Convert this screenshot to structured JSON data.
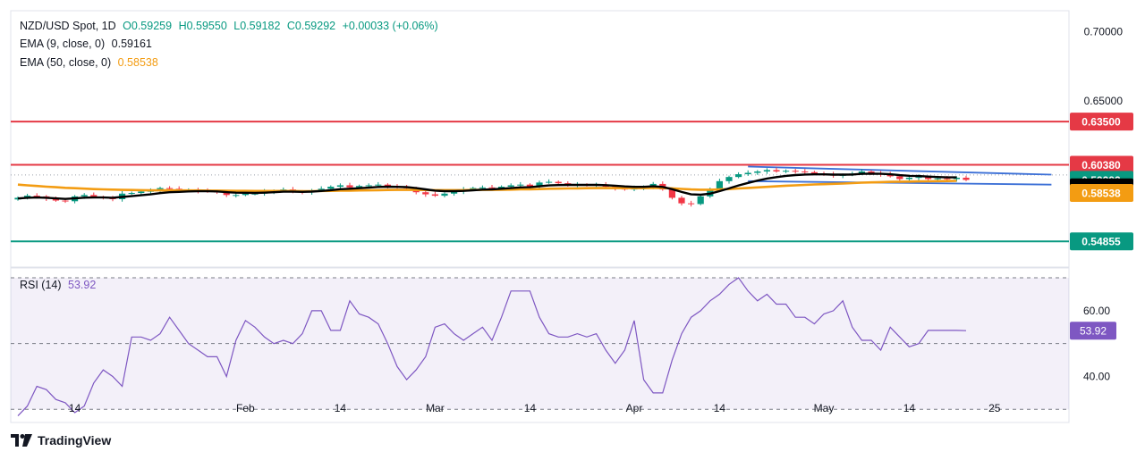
{
  "header": {
    "symbol": "NZD/USD Spot, 1D",
    "open": "O0.59259",
    "high": "H0.59550",
    "low": "L0.59182",
    "close": "C0.59292",
    "change": "+0.00033 (+0.06%)",
    "ema9_label": "EMA (9, close, 0)",
    "ema9_value": "0.59161",
    "ema50_label": "EMA (50, close, 0)",
    "ema50_value": "0.58538",
    "rsi_label": "RSI (14)",
    "rsi_value": "53.92"
  },
  "brand": "TradingView",
  "colors": {
    "up": "#089981",
    "down": "#f23645",
    "ema9": "#000000",
    "ema50": "#f39c12",
    "rsi": "#7e57c2",
    "resistance": "#e53945",
    "support": "#089981",
    "channel": "#3b6fd6"
  },
  "chart_data": {
    "type": "candlestick",
    "y_axis": {
      "ticks": [
        "0.70000",
        "0.65000"
      ],
      "tick_values": [
        0.7,
        0.65
      ],
      "range": [
        0.53,
        0.715
      ]
    },
    "x_axis_labels": [
      {
        "label": "14",
        "day": 6
      },
      {
        "label": "Feb",
        "day": 24
      },
      {
        "label": "14",
        "day": 34
      },
      {
        "label": "Mar",
        "day": 44
      },
      {
        "label": "14",
        "day": 54
      },
      {
        "label": "Apr",
        "day": 65
      },
      {
        "label": "14",
        "day": 74
      },
      {
        "label": "May",
        "day": 85
      },
      {
        "label": "14",
        "day": 94
      },
      {
        "label": "25",
        "day": 103
      }
    ],
    "price_levels": [
      {
        "name": "resistance-2",
        "value": 0.635,
        "label": "0.63500",
        "color": "#e53945"
      },
      {
        "name": "resistance-1",
        "value": 0.6038,
        "label": "0.60380",
        "color": "#e53945"
      },
      {
        "name": "support",
        "value": 0.54855,
        "label": "0.54855",
        "color": "#089981"
      }
    ],
    "price_tags": [
      {
        "label": "0.59292",
        "value": 0.59292,
        "color": "#089981"
      },
      {
        "label": "0.59161",
        "value": 0.5875,
        "color": "#000000"
      },
      {
        "label": "0.58538",
        "value": 0.5835,
        "color": "#f39c12"
      }
    ],
    "channel": {
      "upper": [
        [
          77,
          0.6025
        ],
        [
          109,
          0.5967
        ]
      ],
      "lower": [
        [
          77,
          0.592
        ],
        [
          109,
          0.5895
        ]
      ]
    },
    "closes": [
      0.58,
      0.5815,
      0.581,
      0.5795,
      0.578,
      0.5775,
      0.581,
      0.582,
      0.5805,
      0.58,
      0.579,
      0.583,
      0.5835,
      0.5845,
      0.585,
      0.587,
      0.5865,
      0.5855,
      0.5858,
      0.585,
      0.5845,
      0.584,
      0.582,
      0.582,
      0.583,
      0.583,
      0.5845,
      0.585,
      0.586,
      0.5845,
      0.584,
      0.585,
      0.5865,
      0.588,
      0.589,
      0.5875,
      0.5885,
      0.589,
      0.5895,
      0.5885,
      0.5875,
      0.587,
      0.584,
      0.5825,
      0.5815,
      0.583,
      0.5845,
      0.586,
      0.587,
      0.5875,
      0.587,
      0.588,
      0.589,
      0.5895,
      0.588,
      0.591,
      0.5915,
      0.5905,
      0.5895,
      0.5895,
      0.589,
      0.5895,
      0.588,
      0.587,
      0.586,
      0.587,
      0.588,
      0.59,
      0.586,
      0.58,
      0.576,
      0.5755,
      0.581,
      0.586,
      0.592,
      0.595,
      0.597,
      0.598,
      0.599,
      0.6,
      0.599,
      0.5995,
      0.599,
      0.5985,
      0.5975,
      0.597,
      0.596,
      0.5965,
      0.5975,
      0.599,
      0.598,
      0.597,
      0.5955,
      0.5935,
      0.5945,
      0.595,
      0.5935,
      0.594,
      0.5935,
      0.5945,
      0.5929
    ],
    "ema9": [
      0.5795,
      0.58,
      0.5802,
      0.58,
      0.5796,
      0.5792,
      0.5796,
      0.5801,
      0.5802,
      0.5802,
      0.58,
      0.5806,
      0.5812,
      0.5818,
      0.5825,
      0.5834,
      0.584,
      0.5843,
      0.5846,
      0.5847,
      0.5847,
      0.5846,
      0.5841,
      0.5837,
      0.5836,
      0.5835,
      0.5837,
      0.584,
      0.5844,
      0.5844,
      0.5843,
      0.5845,
      0.5849,
      0.5855,
      0.5862,
      0.5865,
      0.5869,
      0.5873,
      0.5878,
      0.588,
      0.5879,
      0.5877,
      0.587,
      0.5861,
      0.5852,
      0.5848,
      0.5848,
      0.585,
      0.5854,
      0.5859,
      0.5861,
      0.5865,
      0.587,
      0.5875,
      0.5876,
      0.5883,
      0.5889,
      0.5892,
      0.5893,
      0.5893,
      0.5893,
      0.5893,
      0.5891,
      0.5887,
      0.5882,
      0.5879,
      0.5879,
      0.5883,
      0.5878,
      0.5862,
      0.5842,
      0.5825,
      0.5822,
      0.583,
      0.5848,
      0.5868,
      0.5889,
      0.5907,
      0.5924,
      0.5939,
      0.5949,
      0.5958,
      0.5964,
      0.5968,
      0.5969,
      0.5969,
      0.5967,
      0.5967,
      0.5968,
      0.5973,
      0.5974,
      0.5973,
      0.597,
      0.5963,
      0.5959,
      0.5957,
      0.5953,
      0.595,
      0.5947,
      0.5947,
      0.5916
    ],
    "ema50": [
      0.5895,
      0.589,
      0.5885,
      0.588,
      0.5876,
      0.5872,
      0.5869,
      0.5866,
      0.5863,
      0.5861,
      0.5859,
      0.5857,
      0.5856,
      0.5855,
      0.5854,
      0.5854,
      0.5854,
      0.5853,
      0.5853,
      0.5853,
      0.5852,
      0.5852,
      0.5851,
      0.585,
      0.585,
      0.5849,
      0.5849,
      0.5849,
      0.5849,
      0.5849,
      0.5848,
      0.5848,
      0.5849,
      0.585,
      0.5851,
      0.5852,
      0.5853,
      0.5854,
      0.5855,
      0.5856,
      0.5857,
      0.5857,
      0.5857,
      0.5856,
      0.5855,
      0.5855,
      0.5855,
      0.5855,
      0.5856,
      0.5857,
      0.5857,
      0.5858,
      0.5859,
      0.5861,
      0.5861,
      0.5863,
      0.5865,
      0.5866,
      0.5867,
      0.5868,
      0.5869,
      0.587,
      0.587,
      0.587,
      0.587,
      0.587,
      0.587,
      0.5871,
      0.5871,
      0.5868,
      0.5864,
      0.586,
      0.5858,
      0.5858,
      0.586,
      0.5863,
      0.5867,
      0.5871,
      0.5875,
      0.5879,
      0.5883,
      0.5887,
      0.589,
      0.5893,
      0.5896,
      0.5898,
      0.5901,
      0.5903,
      0.5906,
      0.5909,
      0.5911,
      0.5913,
      0.5915,
      0.5916,
      0.5917,
      0.5918,
      0.5919,
      0.592,
      0.5921,
      0.5922,
      0.5854
    ],
    "rsi": {
      "ticks": [
        "60.00",
        "40.00"
      ],
      "tick_values": [
        60,
        40
      ],
      "bands": [
        70,
        50,
        30
      ],
      "range": [
        26,
        73
      ],
      "values": [
        28,
        31,
        37,
        36,
        33,
        32,
        29,
        31,
        38,
        42,
        40,
        37,
        52,
        52,
        51,
        53,
        58,
        54,
        50,
        48,
        46,
        46,
        40,
        51,
        57,
        55,
        52,
        50,
        51,
        50,
        53,
        60,
        60,
        54,
        54,
        63,
        59,
        58,
        56,
        50,
        43,
        39,
        42,
        46,
        55,
        56,
        53,
        51,
        53,
        55,
        51,
        58,
        66,
        66,
        66,
        58,
        53,
        52,
        52,
        53,
        52,
        53,
        48,
        44,
        48,
        57,
        39,
        35,
        35,
        45,
        53,
        58,
        60,
        63,
        65,
        68,
        70,
        66,
        63,
        65,
        62,
        62,
        58,
        58,
        56,
        59,
        60,
        63,
        55,
        51,
        51,
        48,
        55,
        52,
        49,
        50,
        54,
        54,
        54,
        54,
        53.92
      ],
      "value_label": "53.92"
    }
  }
}
